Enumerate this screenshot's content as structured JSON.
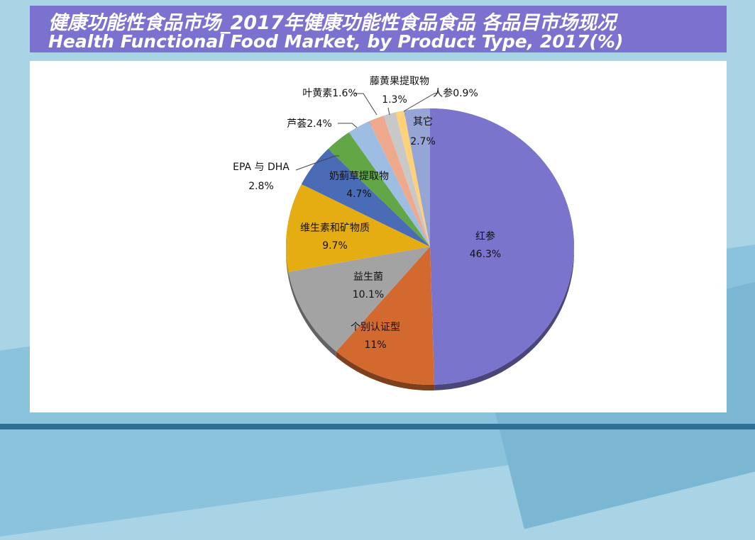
{
  "title": {
    "line1": "健康功能性食品市场_2017年健康功能性食品食品 各品目市场现况",
    "line2": "Health Functional Food Market, by Product Type, 2017(%)"
  },
  "chart_data": {
    "type": "pie",
    "title": "",
    "slices": [
      {
        "label": "红参",
        "value_label": "46.3%",
        "value": 46.3,
        "color": "#7b74cc"
      },
      {
        "label": "个别认证型",
        "value_label": "11%",
        "value": 11,
        "color": "#d2692e"
      },
      {
        "label": "益生菌",
        "value_label": "10.1%",
        "value": 10.1,
        "color": "#a3a3a3"
      },
      {
        "label": "维生素和矿物质",
        "value_label": "9.7%",
        "value": 9.7,
        "color": "#e6ad12"
      },
      {
        "label": "奶蓟草提取物",
        "value_label": "4.7%",
        "value": 4.7,
        "color": "#4a6bb5"
      },
      {
        "label": "EPA 与 DHA",
        "value_label": "2.8%",
        "value": 2.8,
        "color": "#62a646"
      },
      {
        "label": "芦荟",
        "value_label": "2.4%",
        "value": 2.4,
        "color": "#9dbde3"
      },
      {
        "label": "叶黄素",
        "value_label": "1.6%",
        "value": 1.6,
        "color": "#eea98d"
      },
      {
        "label": "藤黄果提取物",
        "value_label": "1.3%",
        "value": 1.3,
        "color": "#c8c8c8"
      },
      {
        "label": "人参",
        "value_label": "0.9%",
        "value": 0.9,
        "color": "#ffd27a"
      },
      {
        "label": "其它",
        "value_label": "2.7%",
        "value": 2.7,
        "color": "#94a5d6"
      }
    ]
  }
}
